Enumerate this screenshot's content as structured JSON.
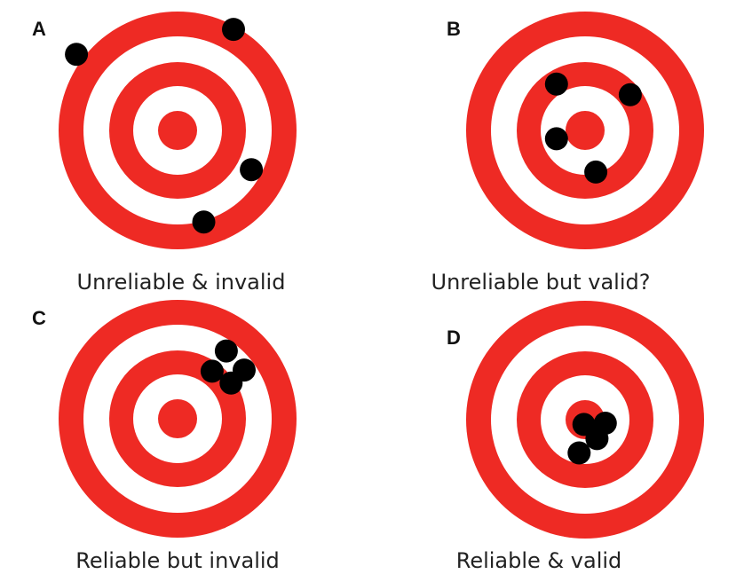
{
  "colors": {
    "ring_red": "#ee2a24",
    "ring_white": "#ffffff",
    "shot": "#000000",
    "text": "#222222"
  },
  "panels": [
    {
      "letter": "A",
      "caption": "Unreliable & invalid",
      "shots": [
        [
          0.47,
          0.85
        ],
        [
          -0.85,
          0.64
        ],
        [
          0.62,
          -0.33
        ],
        [
          0.22,
          -0.77
        ]
      ]
    },
    {
      "letter": "B",
      "caption": "Unreliable but valid?",
      "shots": [
        [
          -0.24,
          0.39
        ],
        [
          0.38,
          0.3
        ],
        [
          -0.24,
          -0.07
        ],
        [
          0.09,
          -0.35
        ]
      ]
    },
    {
      "letter": "C",
      "caption": "Reliable but invalid",
      "shots": [
        [
          0.41,
          0.57
        ],
        [
          0.29,
          0.4
        ],
        [
          0.56,
          0.41
        ],
        [
          0.45,
          0.3
        ]
      ]
    },
    {
      "letter": "D",
      "caption": "Reliable & valid",
      "shots": [
        [
          -0.01,
          -0.04
        ],
        [
          0.17,
          -0.03
        ],
        [
          0.1,
          -0.16
        ],
        [
          -0.05,
          -0.28
        ]
      ]
    }
  ]
}
